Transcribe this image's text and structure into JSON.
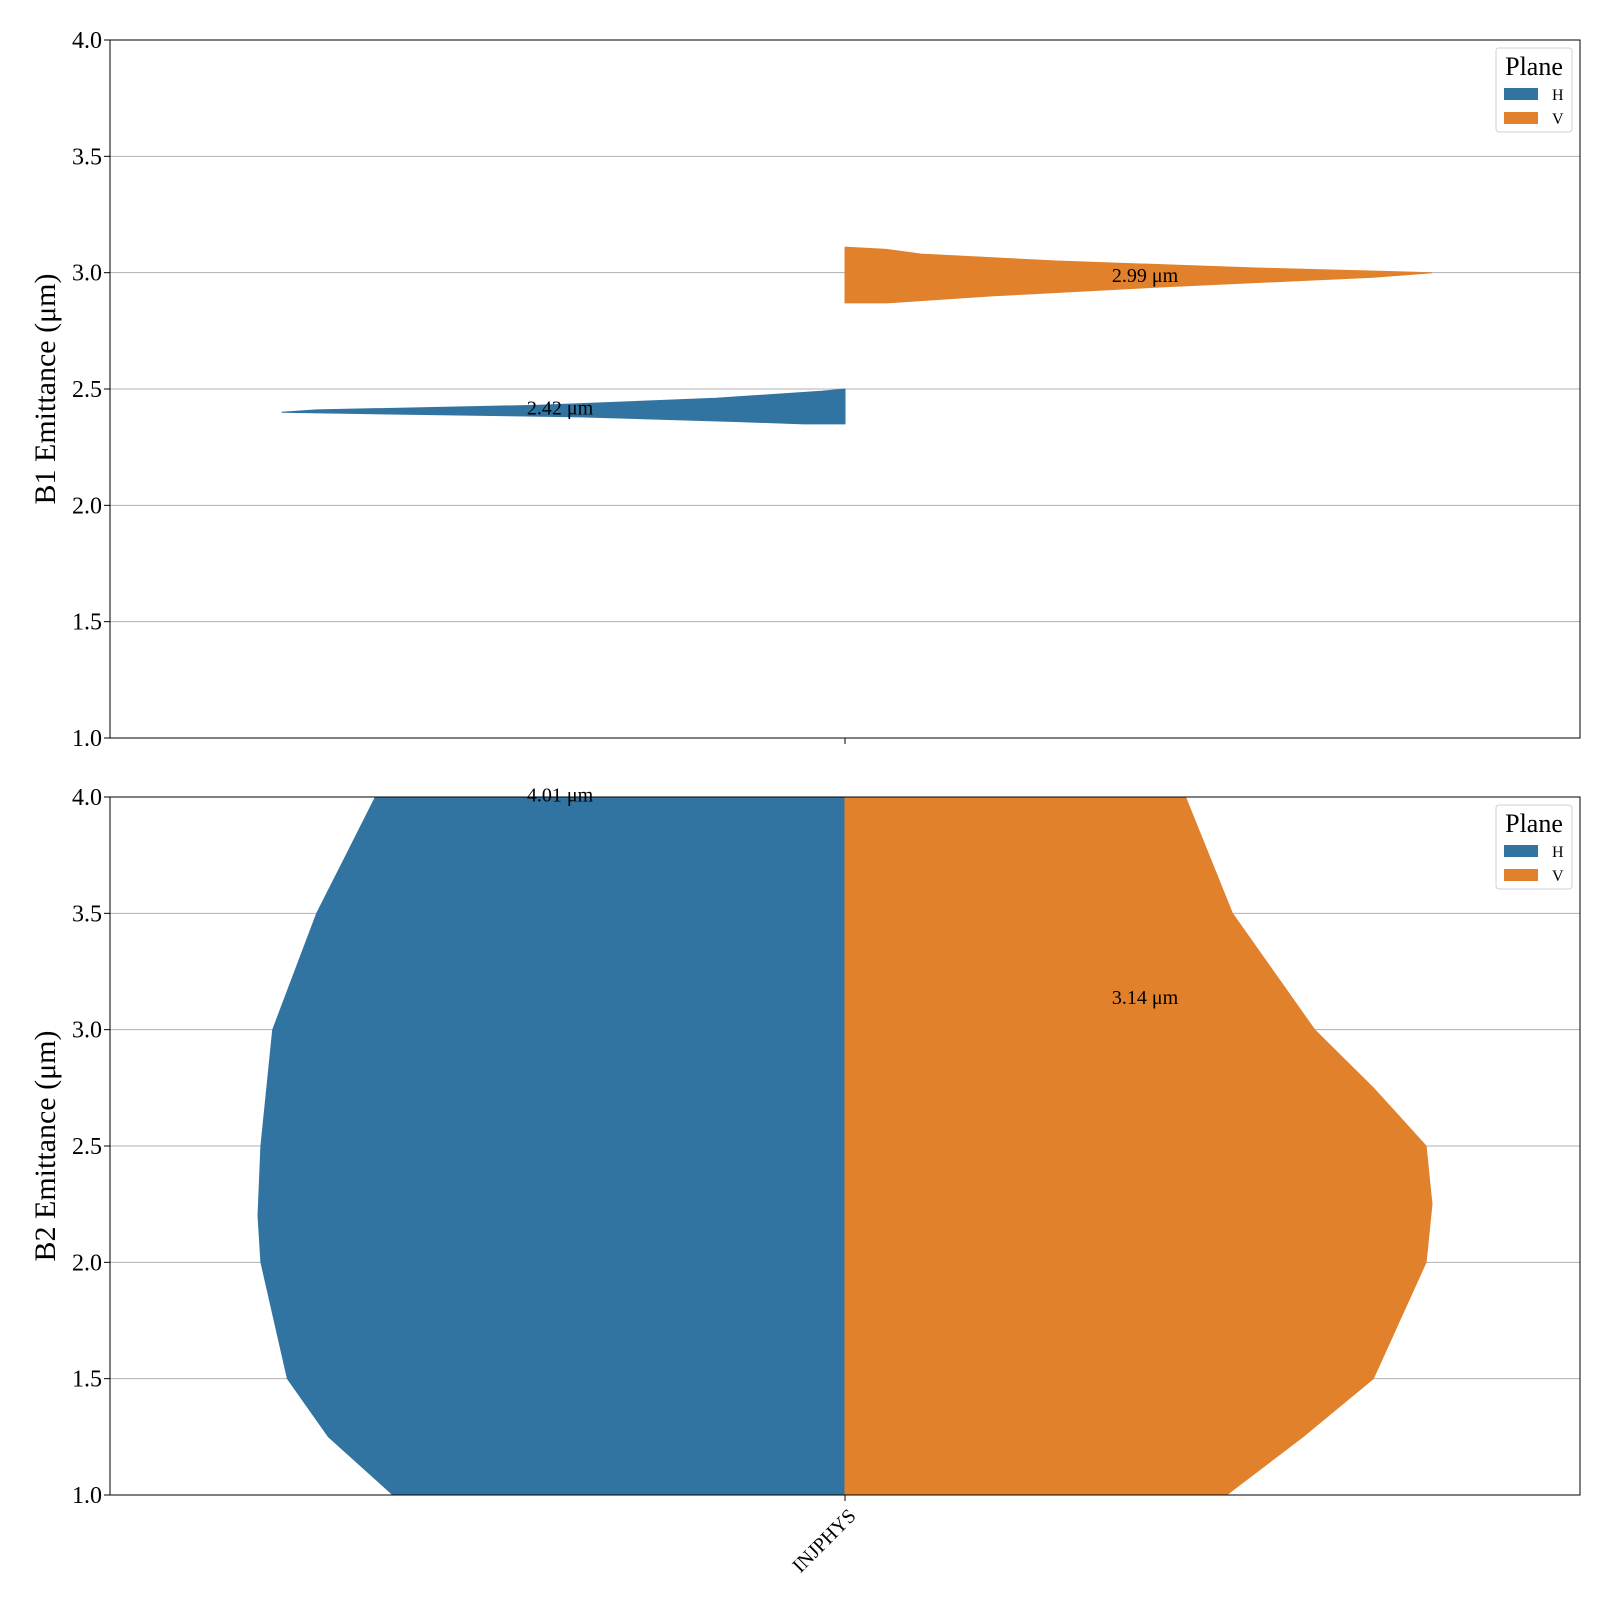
{
  "chart_data": [
    {
      "type": "violin",
      "ylabel": "B1 Emittance (μm)",
      "ylim": [
        1.0,
        4.0
      ],
      "yticks": [
        "1.0",
        "1.5",
        "2.0",
        "2.5",
        "3.0",
        "3.5",
        "4.0"
      ],
      "grid": true,
      "categories": [
        "INJPHYS"
      ],
      "legend": {
        "title": "Plane",
        "position": "top-right",
        "entries": [
          "H",
          "V"
        ]
      },
      "series": [
        {
          "name": "H",
          "color": "#3274a1",
          "side": "left",
          "annotation": "2.42 μm",
          "annotation_y": 2.42,
          "ymin": 2.35,
          "ymax": 2.5,
          "density": [
            [
              2.35,
              0.07
            ],
            [
              2.36,
              0.18
            ],
            [
              2.38,
              0.45
            ],
            [
              2.4,
              0.96
            ],
            [
              2.41,
              0.9
            ],
            [
              2.43,
              0.52
            ],
            [
              2.46,
              0.22
            ],
            [
              2.49,
              0.04
            ],
            [
              2.5,
              0.0
            ]
          ]
        },
        {
          "name": "V",
          "color": "#e1812c",
          "side": "right",
          "annotation": "2.99 μm",
          "annotation_y": 2.99,
          "ymin": 2.87,
          "ymax": 3.11,
          "density": [
            [
              2.87,
              0.07
            ],
            [
              2.9,
              0.25
            ],
            [
              2.94,
              0.55
            ],
            [
              2.98,
              0.9
            ],
            [
              3.0,
              1.0
            ],
            [
              3.02,
              0.7
            ],
            [
              3.05,
              0.36
            ],
            [
              3.08,
              0.13
            ],
            [
              3.1,
              0.07
            ],
            [
              3.11,
              0.0
            ]
          ]
        }
      ]
    },
    {
      "type": "violin",
      "ylabel": "B2 Emittance (μm)",
      "ylim": [
        1.0,
        4.0
      ],
      "yticks": [
        "1.0",
        "1.5",
        "2.0",
        "2.5",
        "3.0",
        "3.5",
        "4.0"
      ],
      "grid": true,
      "categories": [
        "INJPHYS"
      ],
      "legend": {
        "title": "Plane",
        "position": "top-right",
        "entries": [
          "H",
          "V"
        ]
      },
      "series": [
        {
          "name": "H",
          "color": "#3274a1",
          "side": "left",
          "annotation": "4.01 μm",
          "annotation_y": 4.01,
          "density": [
            [
              1.0,
              0.77
            ],
            [
              1.25,
              0.88
            ],
            [
              1.5,
              0.95
            ],
            [
              2.0,
              0.995
            ],
            [
              2.2,
              1.0
            ],
            [
              2.5,
              0.995
            ],
            [
              3.0,
              0.975
            ],
            [
              3.5,
              0.9
            ],
            [
              3.75,
              0.85
            ],
            [
              4.0,
              0.8
            ]
          ]
        },
        {
          "name": "V",
          "color": "#e1812c",
          "side": "right",
          "annotation": "3.14 μm",
          "annotation_y": 3.14,
          "density": [
            [
              1.0,
              0.65
            ],
            [
              1.25,
              0.78
            ],
            [
              1.5,
              0.9
            ],
            [
              2.0,
              0.99
            ],
            [
              2.25,
              1.0
            ],
            [
              2.5,
              0.99
            ],
            [
              2.75,
              0.9
            ],
            [
              3.0,
              0.8
            ],
            [
              3.5,
              0.66
            ],
            [
              4.0,
              0.58
            ]
          ]
        }
      ]
    }
  ]
}
